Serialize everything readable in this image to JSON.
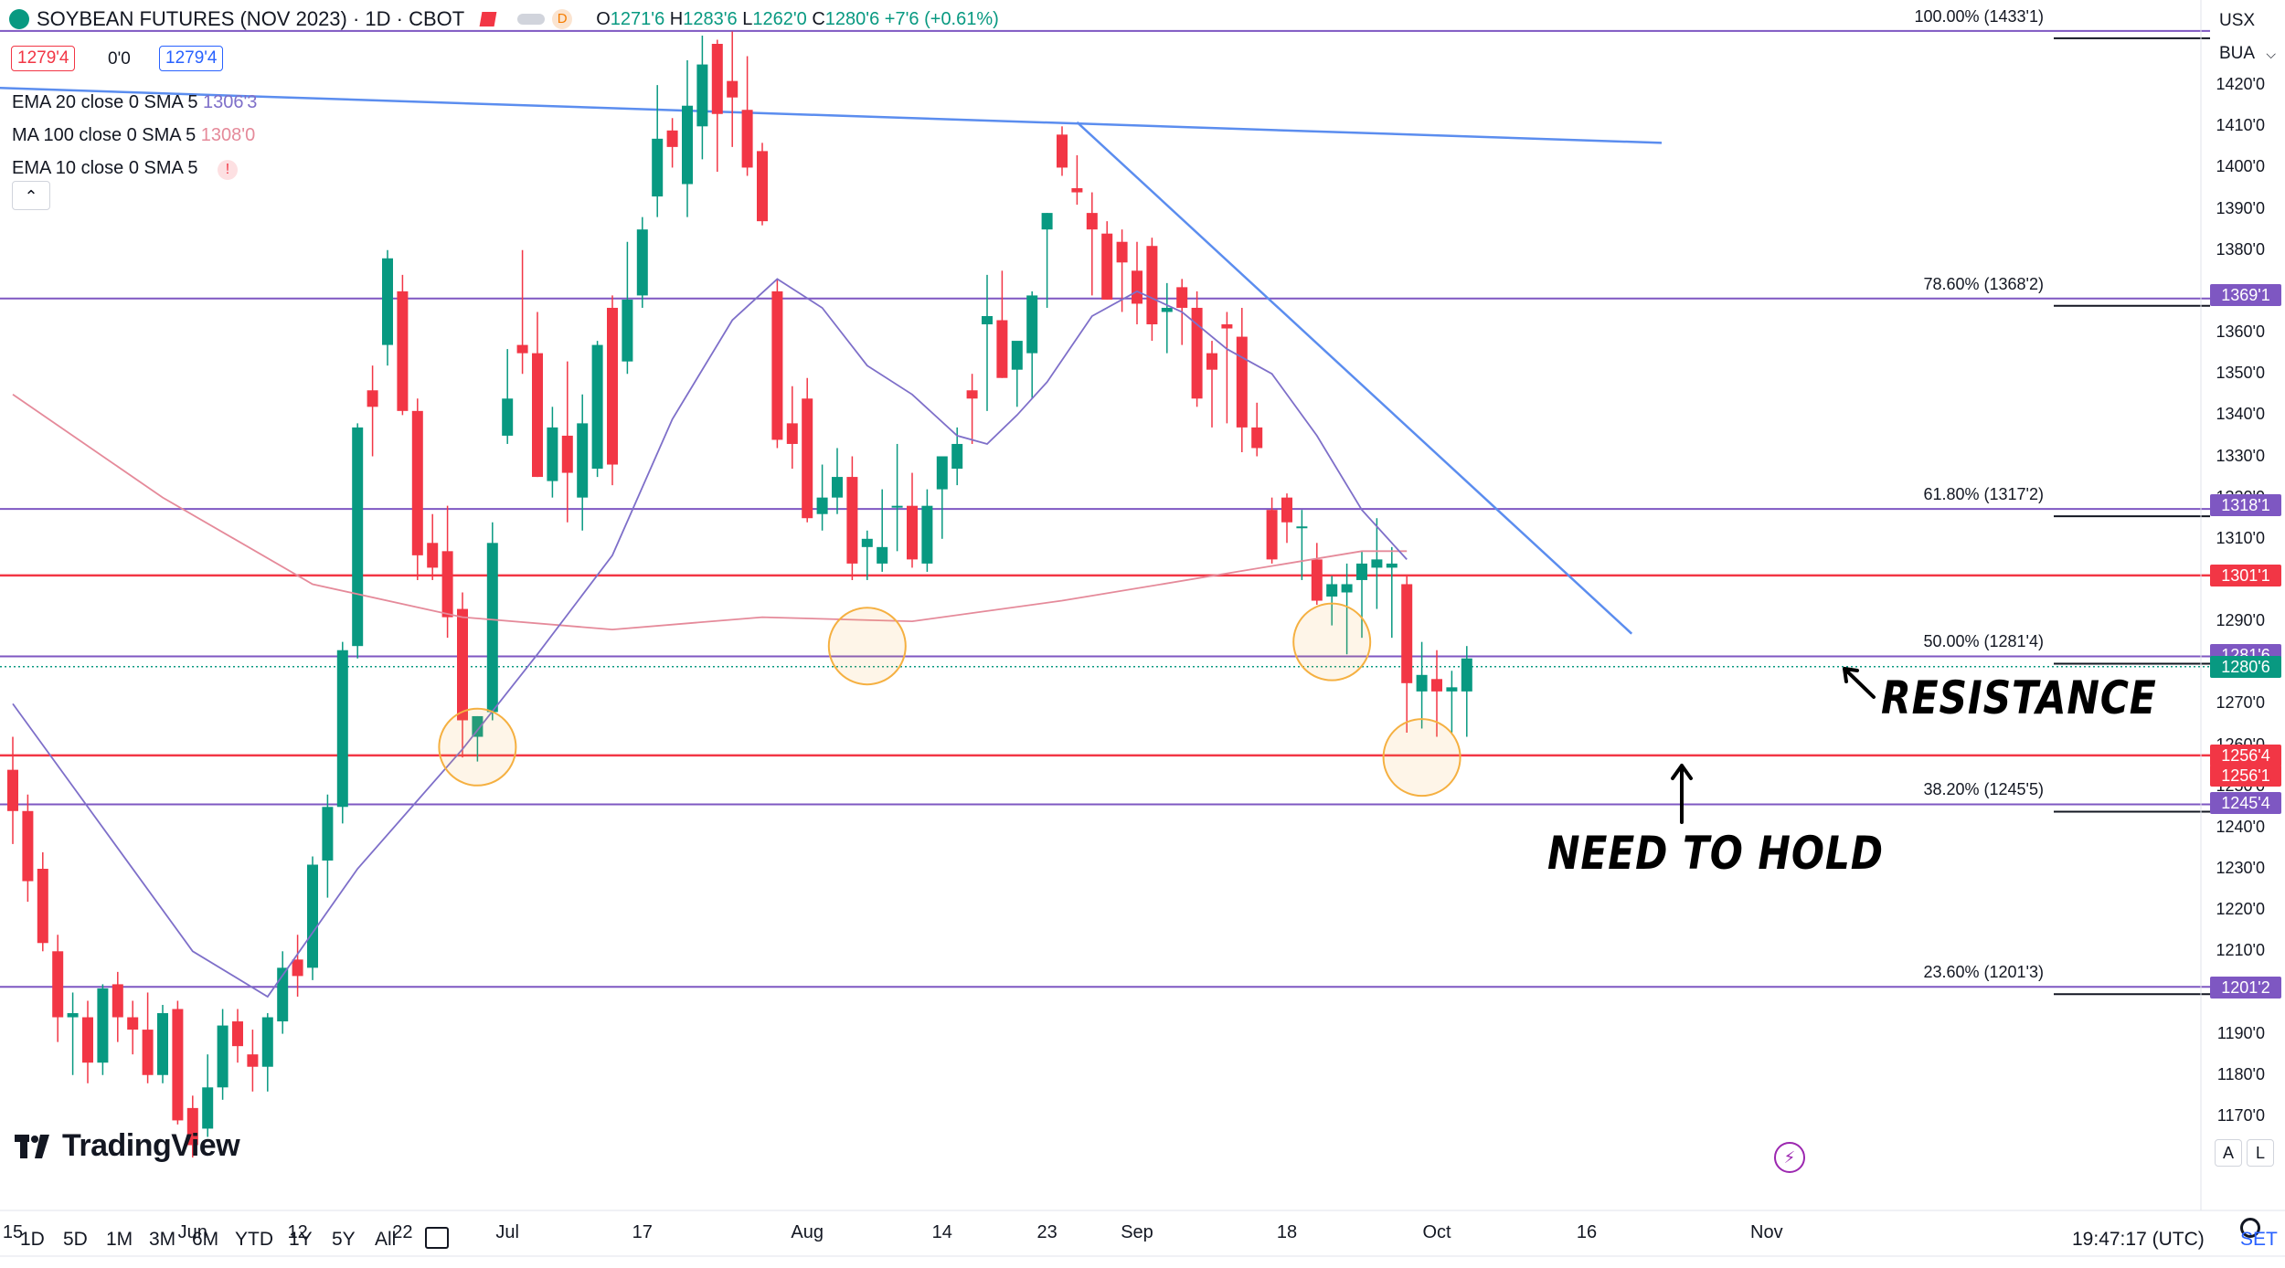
{
  "header": {
    "symbol_title": "SOYBEAN FUTURES (NOV 2023) · 1D · CBOT",
    "ohlc": {
      "o_label": "O",
      "o": "1271'6",
      "h_label": "H",
      "h": "1283'6",
      "l_label": "L",
      "l": "1262'0",
      "c_label": "C",
      "c": "1280'6",
      "change": "+7'6 (+0.61%)"
    },
    "badge_d": "D",
    "sell_price": "1279'4",
    "spread": "0'0",
    "buy_price": "1279'4"
  },
  "indicators": [
    {
      "name": "EMA 20 close 0 SMA 5",
      "value": "1306'3",
      "color": "#7e6fc9"
    },
    {
      "name": "MA 100 close 0 SMA 5",
      "value": "1308'0",
      "color": "#e58a9a"
    },
    {
      "name": "EMA 10 close 0 SMA 5",
      "value": "!",
      "color": "#f23645"
    }
  ],
  "currency": "USX",
  "unit": "BUA",
  "colors": {
    "up": "#089981",
    "down": "#f23645",
    "fib": "#7e57c2",
    "trend": "#5b8def",
    "support": "#f23645",
    "circle": "#f5b041"
  },
  "y_axis": {
    "ticks": [
      "1420'0",
      "1410'0",
      "1400'0",
      "1390'0",
      "1380'0",
      "1370'0",
      "1360'0",
      "1350'0",
      "1340'0",
      "1330'0",
      "1320'0",
      "1310'0",
      "1300'0",
      "1290'0",
      "1280'0",
      "1270'0",
      "1260'0",
      "1250'0",
      "1240'0",
      "1230'0",
      "1220'0",
      "1210'0",
      "1200'0",
      "1190'0",
      "1180'0",
      "1170'0"
    ]
  },
  "price_tags": [
    {
      "text": "1369'1",
      "price": 1369.125,
      "color": "#7e57c2"
    },
    {
      "text": "1318'1",
      "price": 1318.125,
      "color": "#7e57c2"
    },
    {
      "text": "1301'1",
      "price": 1301.125,
      "color": "#f23645"
    },
    {
      "text": "1281'6",
      "price": 1281.75,
      "color": "#7e57c2"
    },
    {
      "text": "1280'6",
      "price": 1279.0,
      "color": "#089981"
    },
    {
      "text": "1256'4",
      "price": 1257.5,
      "color": "#f23645"
    },
    {
      "text": "1256'1",
      "price": 1252.5,
      "color": "#f23645"
    },
    {
      "text": "1245'4",
      "price": 1246.0,
      "color": "#7e57c2"
    },
    {
      "text": "1201'2",
      "price": 1201.25,
      "color": "#7e57c2"
    }
  ],
  "fib_levels": [
    {
      "label": "100.00% (1433'1)",
      "price": 1433.125
    },
    {
      "label": "78.60% (1368'2)",
      "price": 1368.25
    },
    {
      "label": "61.80% (1317'2)",
      "price": 1317.25
    },
    {
      "label": "50.00% (1281'4)",
      "price": 1281.5
    },
    {
      "label": "38.20% (1245'5)",
      "price": 1245.625
    },
    {
      "label": "23.60% (1201'3)",
      "price": 1201.375
    }
  ],
  "x_axis": {
    "labels": [
      {
        "text": "15",
        "bar": 0
      },
      {
        "text": "Jun",
        "bar": 12
      },
      {
        "text": "12",
        "bar": 19
      },
      {
        "text": "22",
        "bar": 26
      },
      {
        "text": "Jul",
        "bar": 33
      },
      {
        "text": "17",
        "bar": 42
      },
      {
        "text": "Aug",
        "bar": 53
      },
      {
        "text": "14",
        "bar": 62
      },
      {
        "text": "23",
        "bar": 69
      },
      {
        "text": "Sep",
        "bar": 75
      },
      {
        "text": "18",
        "bar": 85
      },
      {
        "text": "Oct",
        "bar": 95
      },
      {
        "text": "16",
        "bar": 105
      },
      {
        "text": "Nov",
        "bar": 117
      }
    ]
  },
  "annotations": {
    "resistance": "RESISTANCE",
    "need_to_hold": "NEED TO HOLD"
  },
  "logo": "TradingView",
  "footer": {
    "timeframes": [
      "1D",
      "5D",
      "1M",
      "3M",
      "6M",
      "YTD",
      "1Y",
      "5Y",
      "All"
    ],
    "time": "19:47:17 (UTC)",
    "settlement": "SET"
  },
  "axis_buttons": {
    "auto": "A",
    "log": "L"
  },
  "chart_data": {
    "type": "candlestick",
    "title": "SOYBEAN FUTURES (NOV 2023) · 1D · CBOT",
    "ylim": [
      1162,
      1434
    ],
    "ohlc": [
      [
        1254,
        1262,
        1236,
        1244
      ],
      [
        1244,
        1248,
        1222,
        1227
      ],
      [
        1230,
        1234,
        1210,
        1212
      ],
      [
        1210,
        1214,
        1188,
        1194
      ],
      [
        1194,
        1200,
        1180,
        1195
      ],
      [
        1194,
        1198,
        1178,
        1183
      ],
      [
        1183,
        1202,
        1180,
        1201
      ],
      [
        1202,
        1205,
        1188,
        1194
      ],
      [
        1194,
        1198,
        1185,
        1191
      ],
      [
        1191,
        1200,
        1178,
        1180
      ],
      [
        1180,
        1197,
        1178,
        1195
      ],
      [
        1196,
        1198,
        1168,
        1169
      ],
      [
        1172,
        1175,
        1160,
        1163
      ],
      [
        1167,
        1185,
        1165,
        1177
      ],
      [
        1177,
        1196,
        1174,
        1192
      ],
      [
        1193,
        1196,
        1183,
        1187
      ],
      [
        1185,
        1191,
        1176,
        1182
      ],
      [
        1182,
        1195,
        1176,
        1194
      ],
      [
        1193,
        1210,
        1190,
        1206
      ],
      [
        1208,
        1214,
        1199,
        1204
      ],
      [
        1206,
        1233,
        1203,
        1231
      ],
      [
        1232,
        1248,
        1223,
        1245
      ],
      [
        1245,
        1285,
        1241,
        1283
      ],
      [
        1284,
        1338,
        1281,
        1337
      ],
      [
        1346,
        1352,
        1330,
        1342
      ],
      [
        1357,
        1380,
        1352,
        1378
      ],
      [
        1370,
        1374,
        1340,
        1341
      ],
      [
        1341,
        1344,
        1300,
        1306
      ],
      [
        1309,
        1316,
        1300,
        1303
      ],
      [
        1307,
        1318,
        1286,
        1291
      ],
      [
        1293,
        1297,
        1257,
        1266
      ],
      [
        1262,
        1267,
        1256,
        1267
      ],
      [
        1268,
        1314,
        1266,
        1309
      ],
      [
        1335,
        1356,
        1333,
        1344
      ],
      [
        1357,
        1380,
        1350,
        1355
      ],
      [
        1355,
        1365,
        1325,
        1325
      ],
      [
        1324,
        1342,
        1320,
        1337
      ],
      [
        1335,
        1353,
        1314,
        1326
      ],
      [
        1320,
        1345,
        1312,
        1338
      ],
      [
        1327,
        1358,
        1325,
        1357
      ],
      [
        1366,
        1369,
        1323,
        1328
      ],
      [
        1353,
        1382,
        1350,
        1368
      ],
      [
        1369,
        1388,
        1366,
        1385
      ],
      [
        1393,
        1420,
        1388,
        1407
      ],
      [
        1409,
        1412,
        1400,
        1405
      ],
      [
        1396,
        1426,
        1388,
        1415
      ],
      [
        1410,
        1432,
        1402,
        1425
      ],
      [
        1430,
        1431,
        1399,
        1413
      ],
      [
        1421,
        1433,
        1405,
        1417
      ],
      [
        1414,
        1427,
        1398,
        1400
      ],
      [
        1404,
        1406,
        1386,
        1387
      ],
      [
        1370,
        1373,
        1332,
        1334
      ],
      [
        1338,
        1347,
        1327,
        1333
      ],
      [
        1344,
        1349,
        1314,
        1315
      ],
      [
        1316,
        1328,
        1312,
        1320
      ],
      [
        1320,
        1332,
        1316,
        1325
      ],
      [
        1325,
        1330,
        1300,
        1304
      ],
      [
        1308,
        1312,
        1300,
        1310
      ],
      [
        1304,
        1322,
        1302,
        1308
      ],
      [
        1318,
        1333,
        1307,
        1318
      ],
      [
        1318,
        1326,
        1303,
        1305
      ],
      [
        1304,
        1322,
        1302,
        1318
      ],
      [
        1322,
        1328,
        1310,
        1330
      ],
      [
        1327,
        1337,
        1323,
        1333
      ],
      [
        1346,
        1350,
        1333,
        1344
      ],
      [
        1362,
        1374,
        1341,
        1364
      ],
      [
        1363,
        1375,
        1349,
        1349
      ],
      [
        1351,
        1356,
        1342,
        1358
      ],
      [
        1355,
        1370,
        1344,
        1369
      ],
      [
        1385,
        1389,
        1366,
        1389
      ],
      [
        1408,
        1410,
        1398,
        1400
      ],
      [
        1395,
        1403,
        1391,
        1394
      ],
      [
        1389,
        1394,
        1369,
        1385
      ],
      [
        1384,
        1387,
        1368,
        1368
      ],
      [
        1382,
        1385,
        1365,
        1377
      ],
      [
        1375,
        1382,
        1362,
        1367
      ],
      [
        1381,
        1383,
        1358,
        1362
      ],
      [
        1365,
        1372,
        1355,
        1366
      ],
      [
        1371,
        1373,
        1357,
        1366
      ],
      [
        1366,
        1370,
        1342,
        1344
      ],
      [
        1355,
        1358,
        1337,
        1351
      ],
      [
        1362,
        1365,
        1338,
        1361
      ],
      [
        1359,
        1366,
        1331,
        1337
      ],
      [
        1337,
        1343,
        1330,
        1332
      ],
      [
        1317,
        1320,
        1304,
        1305
      ],
      [
        1320,
        1321,
        1309,
        1314
      ],
      [
        1313,
        1317,
        1300,
        1313
      ],
      [
        1305,
        1309,
        1294,
        1295
      ],
      [
        1296,
        1301,
        1289,
        1299
      ],
      [
        1297,
        1304,
        1282,
        1299
      ],
      [
        1300,
        1307,
        1286,
        1304
      ],
      [
        1303,
        1315,
        1293,
        1305
      ],
      [
        1303,
        1308,
        1286,
        1304
      ],
      [
        1299,
        1301,
        1263,
        1275
      ],
      [
        1273,
        1285,
        1264,
        1277
      ],
      [
        1276,
        1283,
        1262,
        1273
      ],
      [
        1273,
        1278,
        1263,
        1274
      ],
      [
        1273,
        1284,
        1262,
        1281
      ]
    ],
    "ema20": [
      [
        0,
        1270
      ],
      [
        12,
        1210
      ],
      [
        17,
        1199
      ],
      [
        23,
        1230
      ],
      [
        30,
        1259
      ],
      [
        35,
        1282
      ],
      [
        40,
        1306
      ],
      [
        44,
        1339
      ],
      [
        48,
        1363
      ],
      [
        51,
        1373
      ],
      [
        54,
        1366
      ],
      [
        57,
        1352
      ],
      [
        60,
        1345
      ],
      [
        63,
        1335
      ],
      [
        65,
        1333
      ],
      [
        67,
        1340
      ],
      [
        69,
        1348
      ],
      [
        72,
        1364
      ],
      [
        75,
        1370
      ],
      [
        78,
        1365
      ],
      [
        81,
        1356
      ],
      [
        84,
        1350
      ],
      [
        87,
        1335
      ],
      [
        90,
        1317
      ],
      [
        93,
        1305
      ]
    ],
    "ma100": [
      [
        0,
        1345
      ],
      [
        10,
        1320
      ],
      [
        20,
        1299
      ],
      [
        30,
        1291
      ],
      [
        40,
        1288
      ],
      [
        50,
        1291
      ],
      [
        60,
        1290
      ],
      [
        70,
        1295
      ],
      [
        80,
        1301
      ],
      [
        90,
        1307
      ],
      [
        93,
        1307
      ]
    ],
    "trendlines": [
      {
        "name": "upper",
        "from": [
          -15,
          1421
        ],
        "to": [
          110,
          1406
        ]
      },
      {
        "name": "down",
        "from": [
          71,
          1411
        ],
        "to": [
          108,
          1287
        ]
      },
      {
        "name": "lower",
        "from": [
          -15,
          1178
        ],
        "to": [
          -5,
          1168
        ]
      }
    ],
    "support_lines": [
      1301.125,
      1257.5
    ],
    "circles": [
      {
        "bar": 31,
        "price": 1259.5
      },
      {
        "bar": 57,
        "price": 1284
      },
      {
        "bar": 88,
        "price": 1285
      },
      {
        "bar": 94,
        "price": 1257
      }
    ]
  }
}
